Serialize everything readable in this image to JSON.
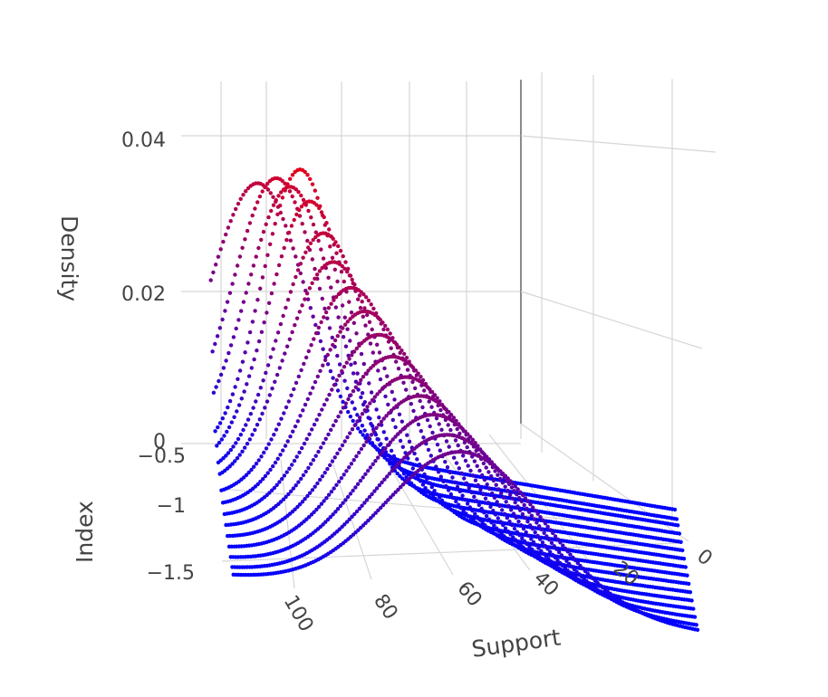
{
  "chart_data": {
    "type": "3d-scatter",
    "x_axis": {
      "label": "Support",
      "ticks": [
        "100",
        "80",
        "60",
        "40",
        "20",
        "0"
      ],
      "range": [
        0,
        110
      ]
    },
    "y_axis": {
      "label": "Index",
      "ticks": [
        "−0.5",
        "−1",
        "−1.5"
      ],
      "range": [
        -1.7,
        -0.4
      ]
    },
    "z_axis": {
      "label": "Density",
      "ticks": [
        "0",
        "0.02",
        "0.04"
      ],
      "range": [
        0,
        0.047
      ]
    },
    "grid": true,
    "colorscale": {
      "low": "#0000ff",
      "high": "#ff0000"
    },
    "curve_model": "gaussian density over Support",
    "series": [
      {
        "index": -0.45,
        "mean": 100,
        "sd": 11.3,
        "peak": 0.0354
      },
      {
        "index": -0.54,
        "mean": 96,
        "sd": 10.5,
        "peak": 0.038
      },
      {
        "index": -0.6,
        "mean": 93,
        "sd": 10.5,
        "peak": 0.0381
      },
      {
        "index": -0.68,
        "mean": 91,
        "sd": 9.5,
        "peak": 0.042
      },
      {
        "index": -0.76,
        "mean": 89,
        "sd": 10.2,
        "peak": 0.0391
      },
      {
        "index": -0.84,
        "mean": 86,
        "sd": 11.0,
        "peak": 0.0363
      },
      {
        "index": -0.92,
        "mean": 84,
        "sd": 11.8,
        "peak": 0.0338
      },
      {
        "index": -1.0,
        "mean": 80,
        "sd": 12.5,
        "peak": 0.0319
      },
      {
        "index": -1.08,
        "mean": 77,
        "sd": 13.2,
        "peak": 0.0302
      },
      {
        "index": -1.16,
        "mean": 74,
        "sd": 14.0,
        "peak": 0.0285
      },
      {
        "index": -1.24,
        "mean": 71,
        "sd": 14.8,
        "peak": 0.027
      },
      {
        "index": -1.32,
        "mean": 68,
        "sd": 15.5,
        "peak": 0.0257
      },
      {
        "index": -1.4,
        "mean": 65,
        "sd": 16.2,
        "peak": 0.0246
      },
      {
        "index": -1.48,
        "mean": 62,
        "sd": 17.0,
        "peak": 0.0235
      },
      {
        "index": -1.56,
        "mean": 59,
        "sd": 18.0,
        "peak": 0.0222
      },
      {
        "index": -1.62,
        "mean": 56,
        "sd": 19.0,
        "peak": 0.021
      }
    ]
  }
}
